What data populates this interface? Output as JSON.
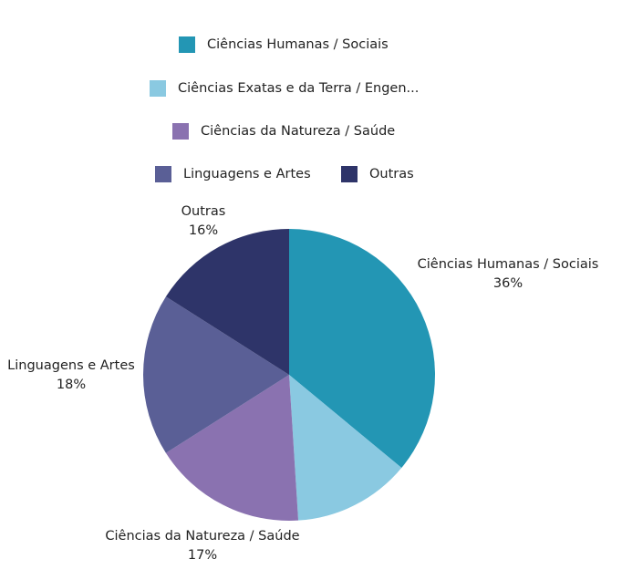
{
  "chart_data": {
    "type": "pie",
    "legend": {
      "position": "top",
      "entries": [
        "Ciências Humanas / Sociais",
        "Ciências Exatas e da Terra / Engen...",
        "Ciências da Natureza / Saúde",
        "Linguagens e Artes",
        "Outras"
      ]
    },
    "slices": [
      {
        "label": "Ciências Humanas / Sociais",
        "value": 36,
        "value_label": "36%",
        "color": "#2396b4"
      },
      {
        "label": "Ciências Exatas e da Terra / Engenharia",
        "value": 13,
        "color": "#8ac9e1"
      },
      {
        "label": "Ciências da Natureza / Saúde",
        "value": 17,
        "value_label": "17%",
        "color": "#8a72b0"
      },
      {
        "label": "Linguagens e Artes",
        "value": 18,
        "value_label": "18%",
        "color": "#5a5f96"
      },
      {
        "label": "Outras",
        "value": 16,
        "value_label": "16%",
        "color": "#2e3469"
      }
    ]
  }
}
